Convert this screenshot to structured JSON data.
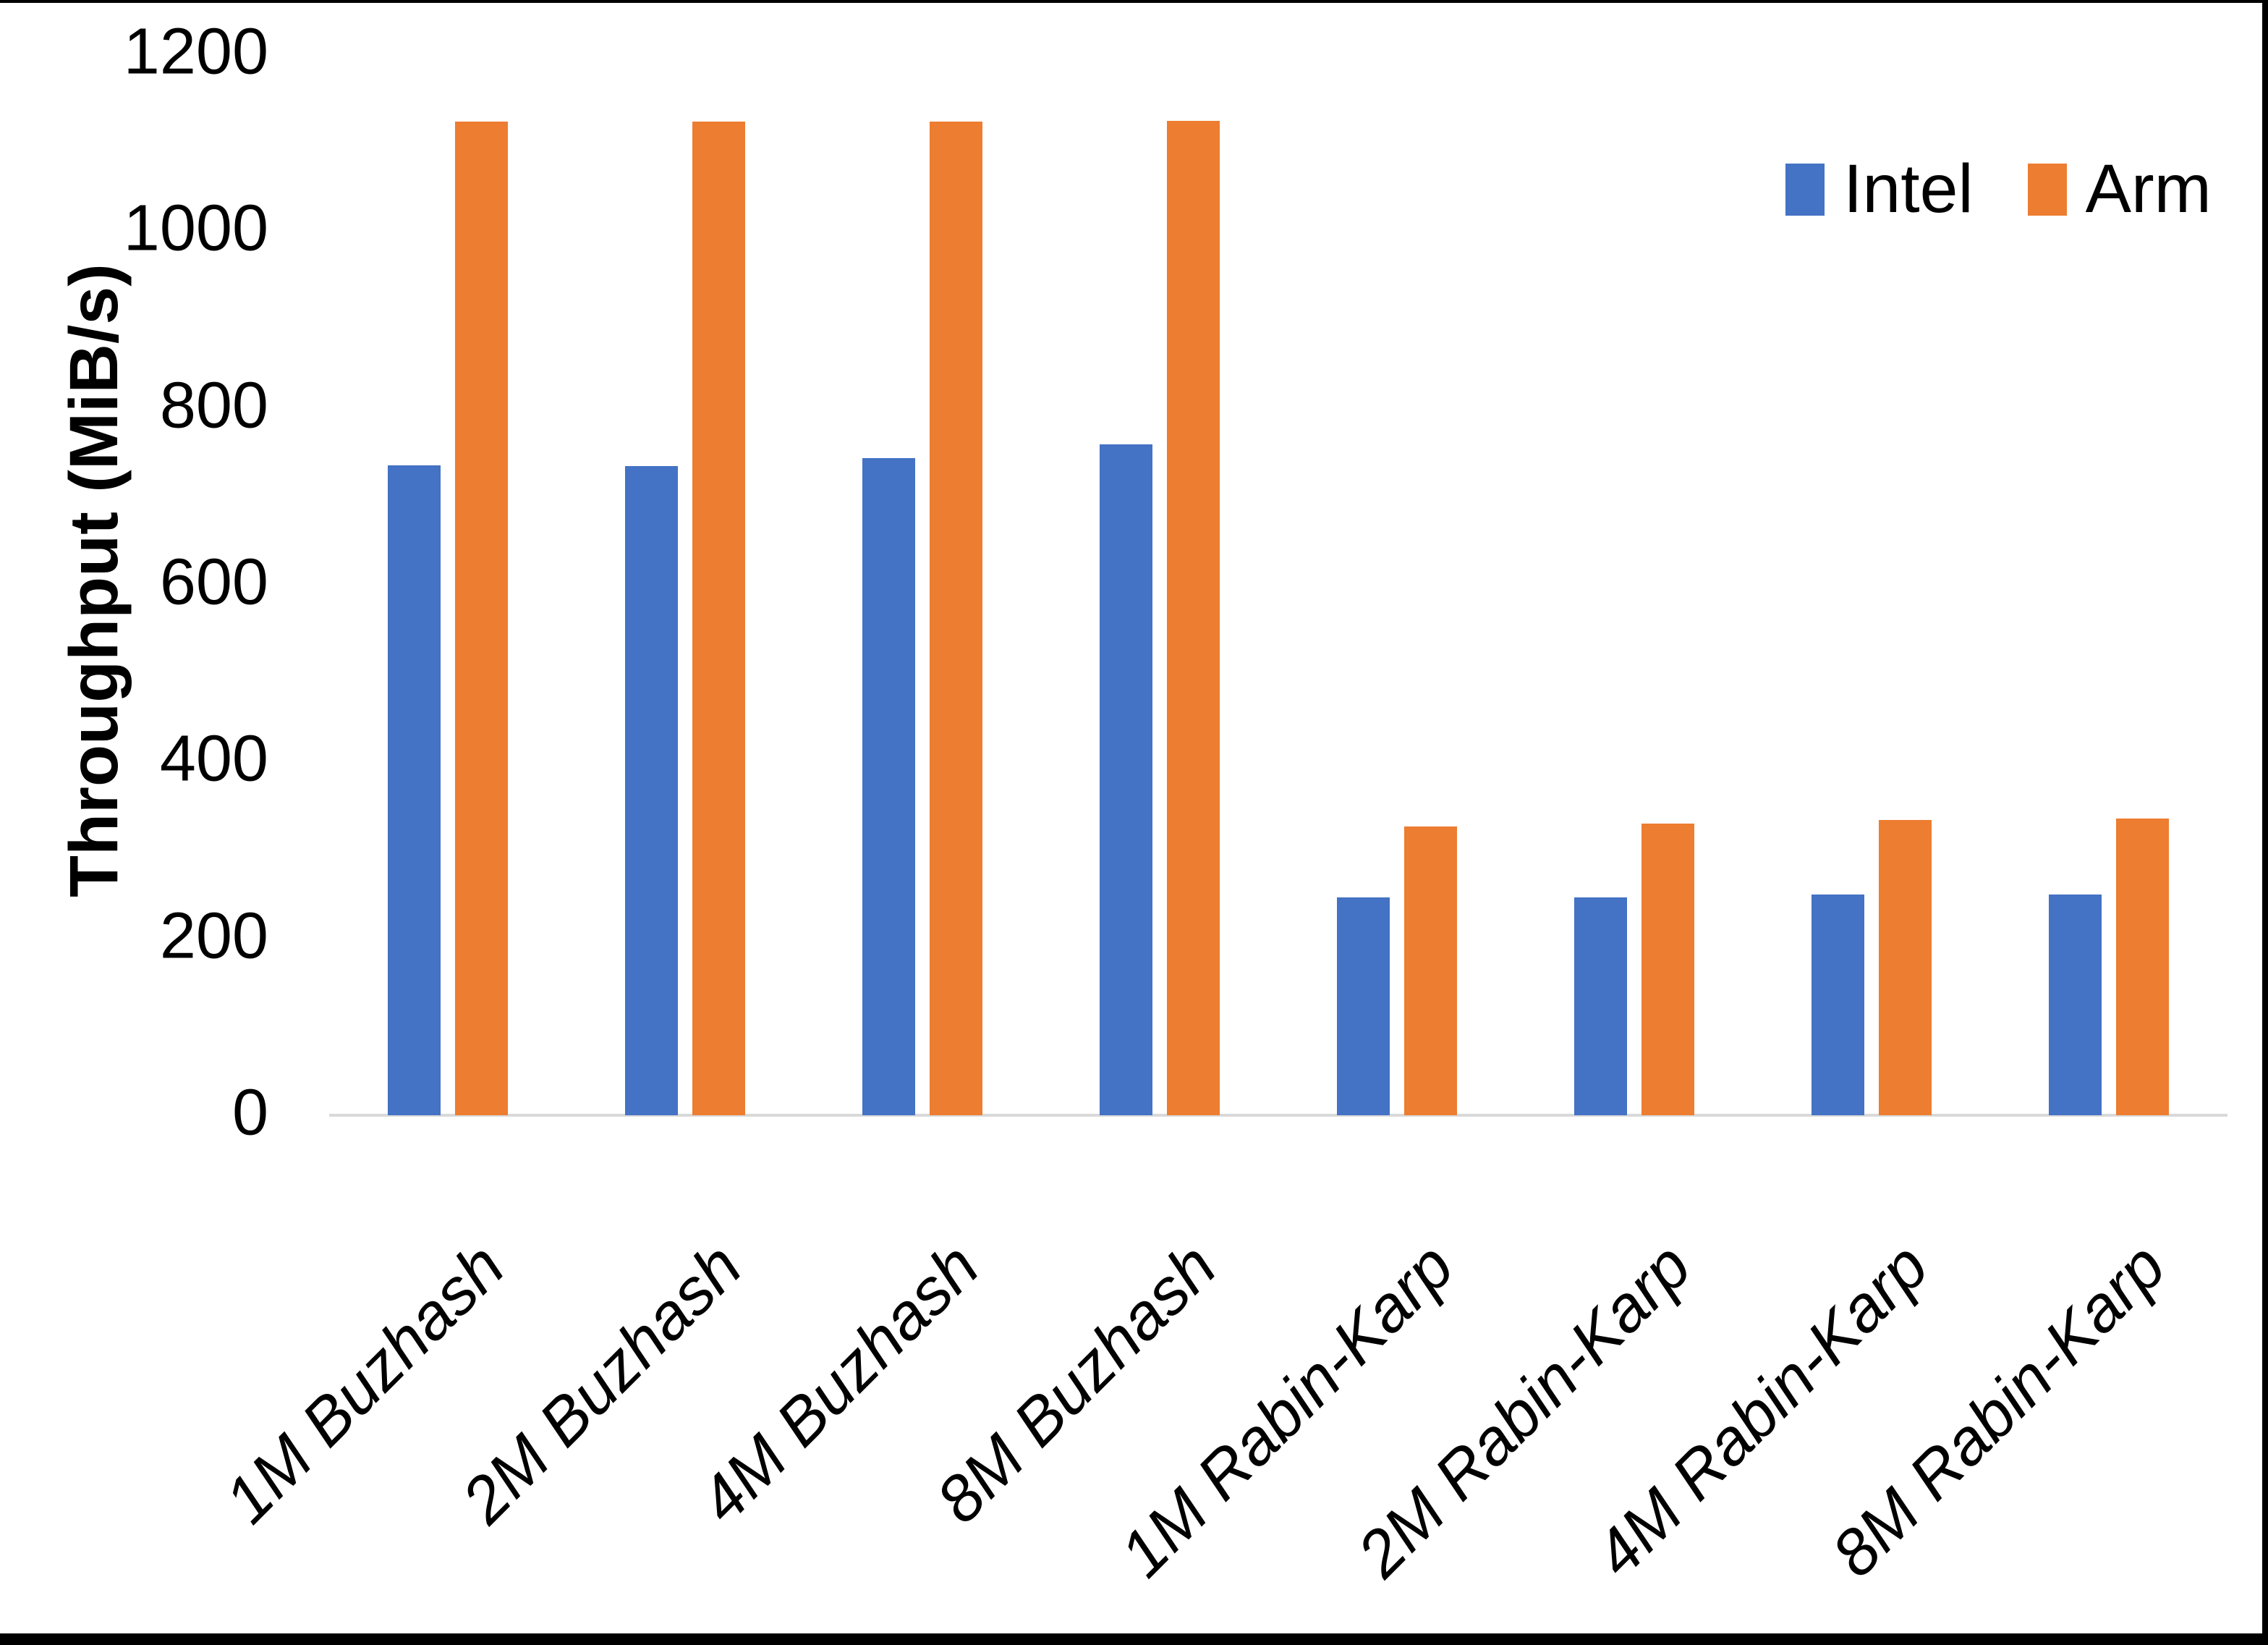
{
  "chart_data": {
    "type": "bar",
    "title": "",
    "xlabel": "",
    "ylabel": "Throughput (MiB/s)",
    "ylim": [
      0,
      1200
    ],
    "yticks": [
      0,
      200,
      400,
      600,
      800,
      1000,
      1200
    ],
    "grid": false,
    "legend_position": "top-right",
    "axis_line_color": "#D9D9D9",
    "categories": [
      "1M Buzhash",
      "2M Buzhash",
      "4M Buzhash",
      "8M Buzhash",
      "1M Rabin-Karp",
      "2M Rabin-Karp",
      "4M Rabin-Karp",
      "8M Rabin-Karp"
    ],
    "series": [
      {
        "name": "Intel",
        "color": "#4472C4",
        "values": [
          735,
          734,
          743,
          759,
          246,
          246,
          250,
          250
        ]
      },
      {
        "name": "Arm",
        "color": "#ED7D31",
        "values": [
          1124,
          1124,
          1124,
          1125,
          327,
          330,
          334,
          336
        ]
      }
    ]
  }
}
